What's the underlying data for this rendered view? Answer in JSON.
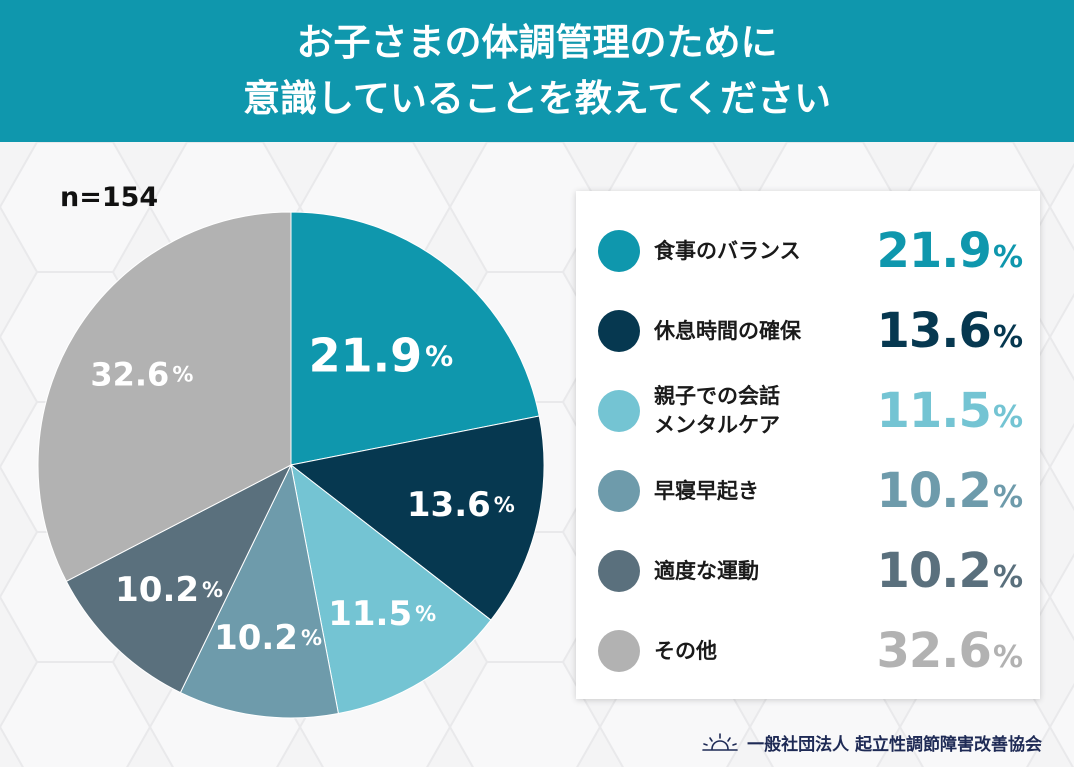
{
  "header": {
    "title_line1": "お子さまの体調管理のために",
    "title_line2": "意識していることを教えてください"
  },
  "sample_size": "n=154",
  "footer": {
    "organization": "一般社団法人 起立性調節障害改善協会",
    "logo_icon": "sunrise-icon"
  },
  "colors": {
    "header_bg": "#0f97ad",
    "background": "#f4f4f5"
  },
  "chart_data": {
    "type": "pie",
    "unit": "%",
    "categories": [
      "食事のバランス",
      "休息時間の確保",
      "親子での会話\nメンタルケア",
      "早寝早起き",
      "適度な運動",
      "その他"
    ],
    "values": [
      21.9,
      13.6,
      11.5,
      10.2,
      10.2,
      32.6
    ],
    "value_labels": [
      "21.9",
      "13.6",
      "11.5",
      "10.2",
      "10.2",
      "32.6"
    ],
    "colors": [
      "#0f97ad",
      "#063850",
      "#74c4d3",
      "#6e9bab",
      "#5a707d",
      "#b2b2b2"
    ],
    "start_angle_deg": 0,
    "direction": "clockwise",
    "legend_position": "right"
  }
}
